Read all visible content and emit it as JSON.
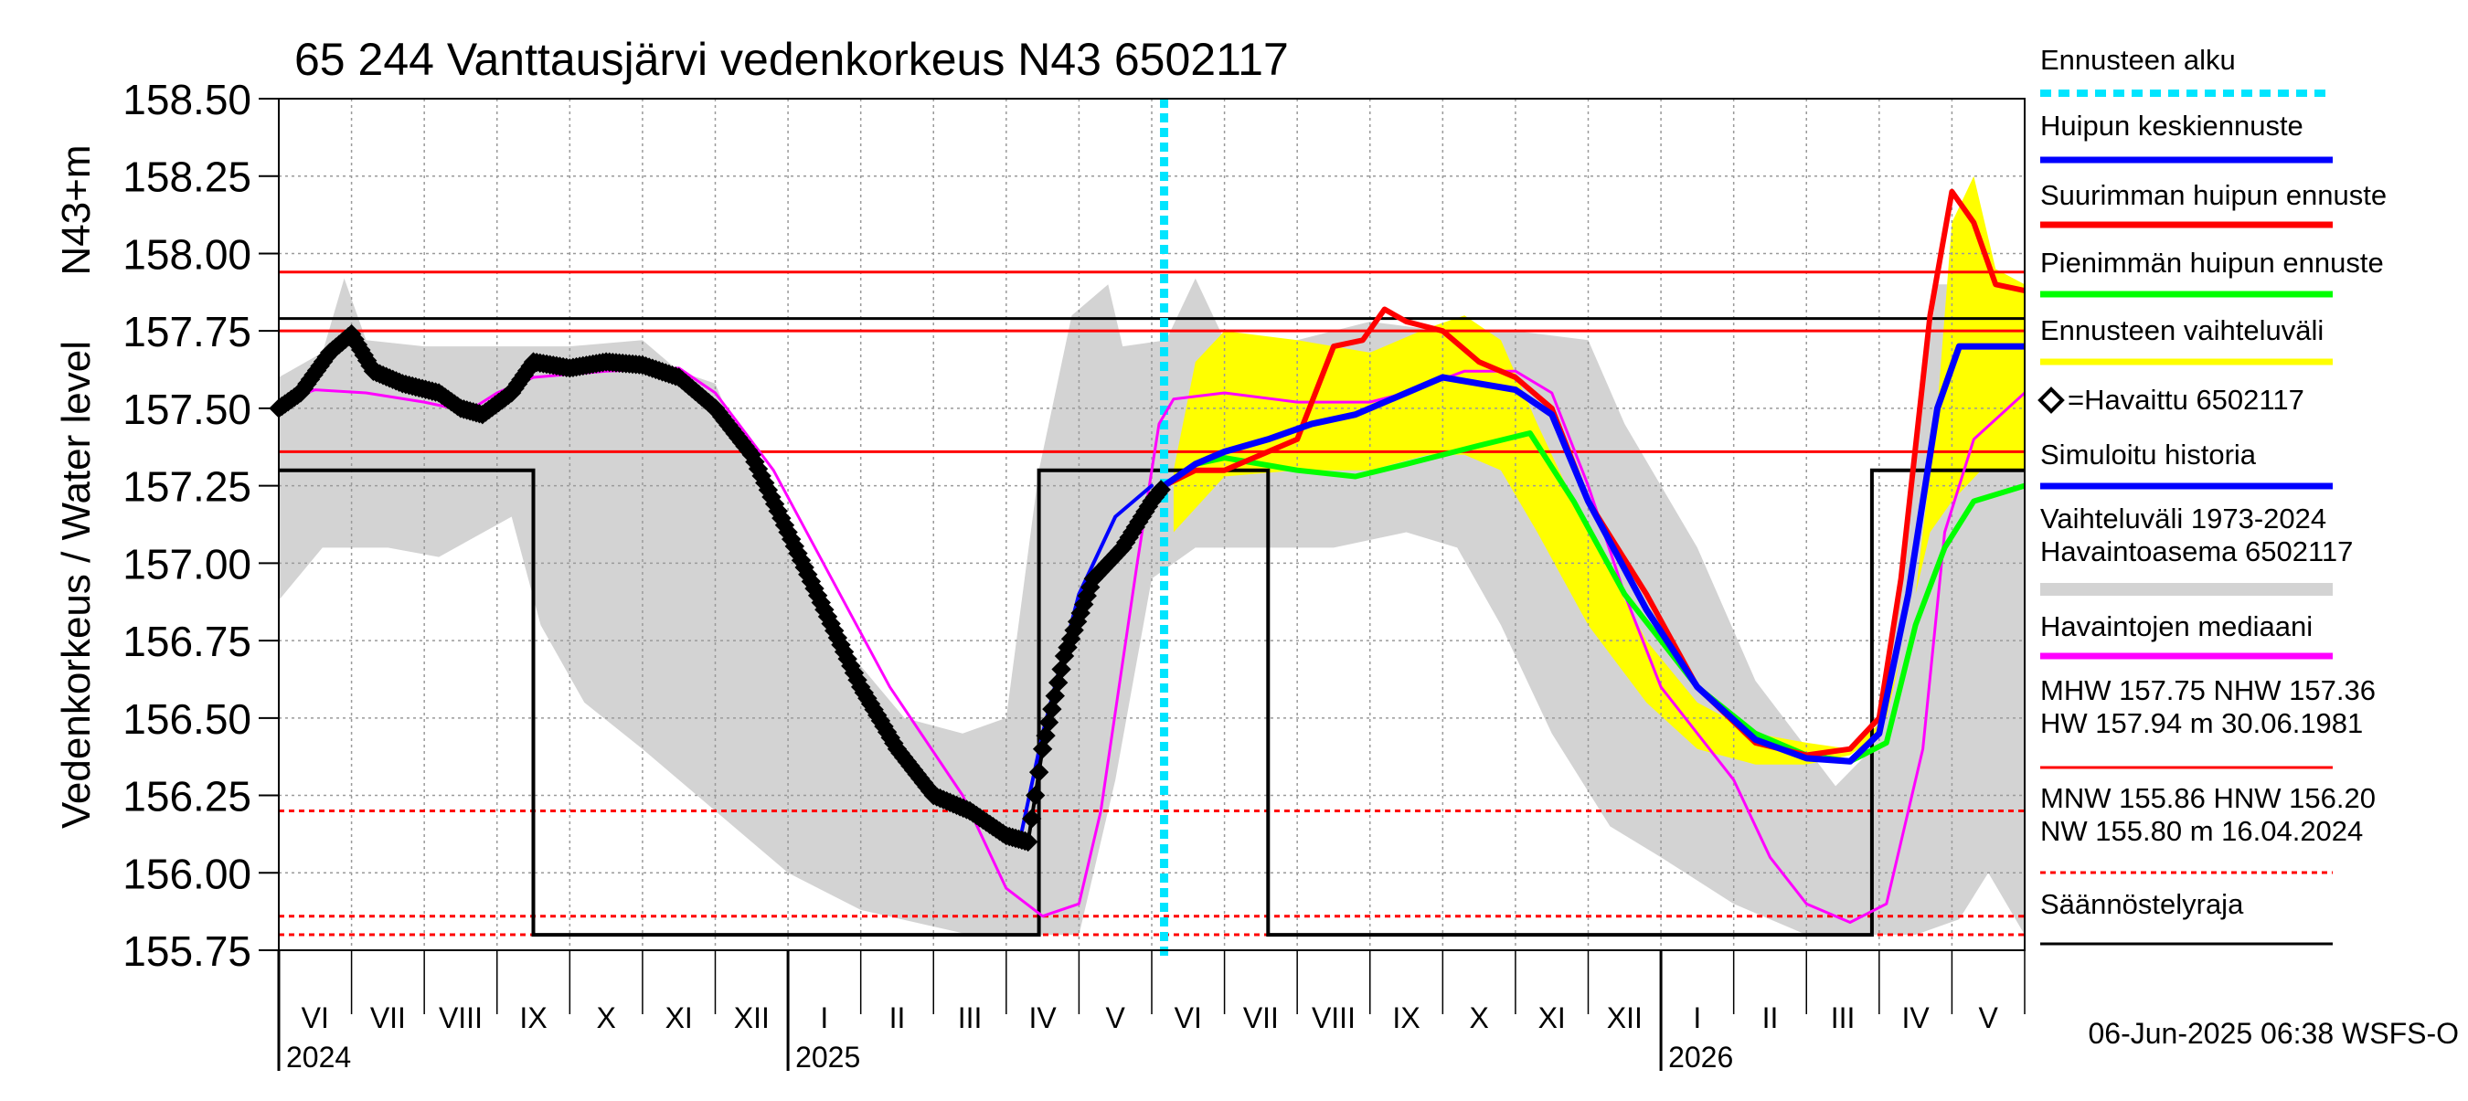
{
  "chart_data": {
    "type": "line",
    "title": "65 244 Vanttausjärvi vedenkorkeus N43 6502117",
    "ylabel_left": "Vedenkorkeus / Water level",
    "ylabel_unit": "N43+m",
    "ylim": [
      155.75,
      158.5
    ],
    "yticks": [
      "158.50",
      "158.25",
      "158.00",
      "157.75",
      "157.50",
      "157.25",
      "157.00",
      "156.75",
      "156.50",
      "156.25",
      "156.00",
      "155.75"
    ],
    "xlim_month_index": [
      0,
      24
    ],
    "months": [
      "VI",
      "VII",
      "VIII",
      "IX",
      "X",
      "XI",
      "XII",
      "I",
      "II",
      "III",
      "IV",
      "V",
      "VI",
      "VII",
      "VIII",
      "IX",
      "X",
      "XI",
      "XII",
      "I",
      "II",
      "III",
      "IV",
      "V"
    ],
    "years": [
      {
        "label": "2024",
        "month_index": 0
      },
      {
        "label": "2025",
        "month_index": 7
      },
      {
        "label": "2026",
        "month_index": 19
      }
    ],
    "forecast_start_month_index": 12.17,
    "reference_lines": [
      {
        "name": "HW",
        "value": 157.94,
        "color": "#ff0000",
        "style": "solid"
      },
      {
        "name": "MHW",
        "value": 157.75,
        "color": "#ff0000",
        "style": "solid"
      },
      {
        "name": "NHW",
        "value": 157.36,
        "color": "#ff0000",
        "style": "solid"
      },
      {
        "name": "HNW",
        "value": 156.2,
        "color": "#ff0000",
        "style": "dashed"
      },
      {
        "name": "MNW",
        "value": 155.86,
        "color": "#ff0000",
        "style": "dashed"
      },
      {
        "name": "NW",
        "value": 155.8,
        "color": "#ff0000",
        "style": "dashed"
      },
      {
        "name": "upper_black",
        "value": 157.79,
        "color": "#000000",
        "style": "solid"
      }
    ],
    "regulation_limit": {
      "color": "#000000",
      "points": [
        [
          0,
          157.3
        ],
        [
          3.5,
          157.3
        ],
        [
          3.5,
          155.8
        ],
        [
          10.45,
          155.8
        ],
        [
          10.45,
          157.3
        ],
        [
          13.6,
          157.3
        ],
        [
          13.6,
          155.8
        ],
        [
          21.9,
          155.8
        ],
        [
          21.9,
          157.3
        ],
        [
          24,
          157.3
        ]
      ]
    },
    "historical_range": {
      "color": "#d3d3d3",
      "upper": [
        [
          0,
          157.6
        ],
        [
          0.6,
          157.68
        ],
        [
          0.9,
          157.92
        ],
        [
          1.2,
          157.72
        ],
        [
          2,
          157.7
        ],
        [
          3,
          157.7
        ],
        [
          4,
          157.7
        ],
        [
          5,
          157.72
        ],
        [
          5.5,
          157.62
        ],
        [
          6,
          157.58
        ],
        [
          6.5,
          157.3
        ],
        [
          7,
          157.05
        ],
        [
          7.6,
          156.78
        ],
        [
          8.6,
          156.5
        ],
        [
          9.4,
          156.45
        ],
        [
          10,
          156.5
        ],
        [
          10.45,
          157.3
        ],
        [
          10.9,
          157.8
        ],
        [
          11.4,
          157.9
        ],
        [
          11.6,
          157.7
        ],
        [
          12.2,
          157.72
        ],
        [
          12.6,
          157.92
        ],
        [
          13,
          157.72
        ],
        [
          14,
          157.72
        ],
        [
          15,
          157.78
        ],
        [
          16,
          157.75
        ],
        [
          17,
          157.75
        ],
        [
          18,
          157.72
        ],
        [
          18.5,
          157.45
        ],
        [
          19.5,
          157.05
        ],
        [
          20.3,
          156.62
        ],
        [
          21.4,
          156.28
        ],
        [
          21.9,
          156.4
        ],
        [
          22.3,
          157.0
        ],
        [
          22.8,
          157.9
        ],
        [
          23.2,
          157.9
        ],
        [
          24,
          157.8
        ]
      ],
      "lower": [
        [
          0,
          156.88
        ],
        [
          0.6,
          157.05
        ],
        [
          1.5,
          157.05
        ],
        [
          2.2,
          157.02
        ],
        [
          3.2,
          157.15
        ],
        [
          3.6,
          156.8
        ],
        [
          4.2,
          156.55
        ],
        [
          5,
          156.4
        ],
        [
          6,
          156.2
        ],
        [
          7,
          156.0
        ],
        [
          8,
          155.88
        ],
        [
          9.5,
          155.8
        ],
        [
          10.45,
          155.8
        ],
        [
          11,
          155.8
        ],
        [
          11.5,
          156.3
        ],
        [
          12,
          156.95
        ],
        [
          12.6,
          157.05
        ],
        [
          13.5,
          157.05
        ],
        [
          14.5,
          157.05
        ],
        [
          15.5,
          157.1
        ],
        [
          16.2,
          157.05
        ],
        [
          16.8,
          156.8
        ],
        [
          17.5,
          156.45
        ],
        [
          18.3,
          156.15
        ],
        [
          19,
          156.05
        ],
        [
          20,
          155.9
        ],
        [
          21,
          155.8
        ],
        [
          22.5,
          155.8
        ],
        [
          23.1,
          155.85
        ],
        [
          23.5,
          156.0
        ],
        [
          24,
          155.8
        ]
      ]
    },
    "forecast_range": {
      "color": "#ffff00",
      "upper": [
        [
          12.3,
          157.3
        ],
        [
          12.6,
          157.65
        ],
        [
          13,
          157.75
        ],
        [
          14,
          157.72
        ],
        [
          15,
          157.68
        ],
        [
          15.8,
          157.76
        ],
        [
          16.3,
          157.8
        ],
        [
          16.8,
          157.72
        ],
        [
          17.3,
          157.45
        ],
        [
          18,
          157.1
        ],
        [
          18.8,
          156.75
        ],
        [
          19.5,
          156.55
        ],
        [
          20.3,
          156.45
        ],
        [
          21,
          156.42
        ],
        [
          21.6,
          156.4
        ],
        [
          22.1,
          156.5
        ],
        [
          22.5,
          156.9
        ],
        [
          22.8,
          157.5
        ],
        [
          23.0,
          158.1
        ],
        [
          23.3,
          158.25
        ],
        [
          23.6,
          157.95
        ],
        [
          24,
          157.9
        ]
      ],
      "lower": [
        [
          12.3,
          157.1
        ],
        [
          13,
          157.28
        ],
        [
          14,
          157.3
        ],
        [
          15,
          157.3
        ],
        [
          15.8,
          157.35
        ],
        [
          16.3,
          157.35
        ],
        [
          16.8,
          157.3
        ],
        [
          17.3,
          157.1
        ],
        [
          18,
          156.8
        ],
        [
          18.8,
          156.55
        ],
        [
          19.5,
          156.4
        ],
        [
          20.3,
          156.35
        ],
        [
          21,
          156.35
        ],
        [
          21.6,
          156.38
        ],
        [
          22.0,
          156.45
        ],
        [
          22.3,
          156.7
        ],
        [
          22.7,
          157.1
        ],
        [
          23.0,
          157.2
        ],
        [
          23.4,
          157.3
        ],
        [
          24,
          157.3
        ]
      ]
    },
    "series": [
      {
        "name": "Havaintojen mediaani",
        "color": "#ff00ff",
        "width": 3,
        "points": [
          [
            0,
            157.52
          ],
          [
            0.5,
            157.56
          ],
          [
            1.2,
            157.55
          ],
          [
            2,
            157.52
          ],
          [
            2.6,
            157.49
          ],
          [
            3,
            157.55
          ],
          [
            3.5,
            157.6
          ],
          [
            4.5,
            157.62
          ],
          [
            5.5,
            157.63
          ],
          [
            6,
            157.55
          ],
          [
            6.8,
            157.3
          ],
          [
            7.6,
            156.95
          ],
          [
            8.4,
            156.6
          ],
          [
            9.4,
            156.25
          ],
          [
            10,
            155.95
          ],
          [
            10.5,
            155.86
          ],
          [
            11,
            155.9
          ],
          [
            11.3,
            156.2
          ],
          [
            11.8,
            157.0
          ],
          [
            12.1,
            157.45
          ],
          [
            12.3,
            157.53
          ],
          [
            13,
            157.55
          ],
          [
            14,
            157.52
          ],
          [
            15,
            157.52
          ],
          [
            15.5,
            157.55
          ],
          [
            16.3,
            157.62
          ],
          [
            17,
            157.62
          ],
          [
            17.5,
            157.55
          ],
          [
            18,
            157.25
          ],
          [
            18.5,
            156.9
          ],
          [
            19,
            156.6
          ],
          [
            20,
            156.3
          ],
          [
            20.5,
            156.05
          ],
          [
            21,
            155.9
          ],
          [
            21.6,
            155.84
          ],
          [
            22.1,
            155.9
          ],
          [
            22.6,
            156.4
          ],
          [
            22.9,
            157.1
          ],
          [
            23.3,
            157.4
          ],
          [
            24,
            157.55
          ]
        ]
      },
      {
        "name": "Simuloitu historia",
        "color": "#0000ff",
        "width": 4,
        "points": [
          [
            9.8,
            156.15
          ],
          [
            10.2,
            156.12
          ],
          [
            10.5,
            156.45
          ],
          [
            11,
            156.9
          ],
          [
            11.5,
            157.15
          ],
          [
            12.0,
            157.25
          ]
        ]
      },
      {
        "name": "Pienimmän huipun ennuste",
        "color": "#00ff00",
        "width": 6,
        "points": [
          [
            12.17,
            157.25
          ],
          [
            12.6,
            157.32
          ],
          [
            13,
            157.34
          ],
          [
            14,
            157.3
          ],
          [
            14.8,
            157.28
          ],
          [
            15.5,
            157.32
          ],
          [
            16.5,
            157.38
          ],
          [
            17.2,
            157.42
          ],
          [
            17.8,
            157.2
          ],
          [
            18.5,
            156.9
          ],
          [
            19.5,
            156.6
          ],
          [
            20.3,
            156.45
          ],
          [
            21,
            156.38
          ],
          [
            21.6,
            156.36
          ],
          [
            22.1,
            156.42
          ],
          [
            22.5,
            156.8
          ],
          [
            22.9,
            157.05
          ],
          [
            23.3,
            157.2
          ],
          [
            24,
            157.25
          ]
        ]
      },
      {
        "name": "Suurimman huipun ennuste",
        "color": "#ff0000",
        "width": 6,
        "points": [
          [
            12.17,
            157.25
          ],
          [
            12.6,
            157.3
          ],
          [
            13,
            157.3
          ],
          [
            13.5,
            157.35
          ],
          [
            14,
            157.4
          ],
          [
            14.5,
            157.7
          ],
          [
            14.9,
            157.72
          ],
          [
            15.2,
            157.82
          ],
          [
            15.5,
            157.78
          ],
          [
            16,
            157.75
          ],
          [
            16.5,
            157.65
          ],
          [
            17,
            157.6
          ],
          [
            17.5,
            157.5
          ],
          [
            18,
            157.2
          ],
          [
            18.8,
            156.9
          ],
          [
            19.5,
            156.6
          ],
          [
            20.3,
            156.42
          ],
          [
            21,
            156.38
          ],
          [
            21.6,
            156.4
          ],
          [
            22.0,
            156.5
          ],
          [
            22.3,
            156.95
          ],
          [
            22.7,
            157.8
          ],
          [
            23.0,
            158.2
          ],
          [
            23.3,
            158.1
          ],
          [
            23.6,
            157.9
          ],
          [
            24,
            157.88
          ]
        ]
      },
      {
        "name": "Huipun keskiennuste",
        "color": "#0000ff",
        "width": 7,
        "points": [
          [
            12.17,
            157.25
          ],
          [
            12.6,
            157.32
          ],
          [
            13,
            157.36
          ],
          [
            13.6,
            157.4
          ],
          [
            14.2,
            157.45
          ],
          [
            14.8,
            157.48
          ],
          [
            15.5,
            157.55
          ],
          [
            16.0,
            157.6
          ],
          [
            16.5,
            157.58
          ],
          [
            17,
            157.56
          ],
          [
            17.5,
            157.48
          ],
          [
            18,
            157.2
          ],
          [
            18.8,
            156.85
          ],
          [
            19.5,
            156.6
          ],
          [
            20.3,
            156.43
          ],
          [
            21,
            156.37
          ],
          [
            21.6,
            156.36
          ],
          [
            22.0,
            156.45
          ],
          [
            22.4,
            156.9
          ],
          [
            22.8,
            157.5
          ],
          [
            23.1,
            157.7
          ],
          [
            23.5,
            157.7
          ],
          [
            24,
            157.7
          ]
        ]
      },
      {
        "name": "Havaittu 6502117",
        "color": "#000000",
        "width": 4,
        "markers": "diamond",
        "points": [
          [
            0,
            157.5
          ],
          [
            0.3,
            157.55
          ],
          [
            0.7,
            157.68
          ],
          [
            1.0,
            157.74
          ],
          [
            1.3,
            157.62
          ],
          [
            1.7,
            157.58
          ],
          [
            2.2,
            157.55
          ],
          [
            2.5,
            157.5
          ],
          [
            2.8,
            157.48
          ],
          [
            3.2,
            157.55
          ],
          [
            3.5,
            157.65
          ],
          [
            4.0,
            157.63
          ],
          [
            4.5,
            157.65
          ],
          [
            5.0,
            157.64
          ],
          [
            5.5,
            157.6
          ],
          [
            6.0,
            157.5
          ],
          [
            6.5,
            157.35
          ],
          [
            7.0,
            157.1
          ],
          [
            7.5,
            156.85
          ],
          [
            8.0,
            156.6
          ],
          [
            8.5,
            156.4
          ],
          [
            9.0,
            156.25
          ],
          [
            9.5,
            156.2
          ],
          [
            10.0,
            156.12
          ],
          [
            10.3,
            156.1
          ],
          [
            10.5,
            156.4
          ],
          [
            10.8,
            156.7
          ],
          [
            11.2,
            156.95
          ],
          [
            11.6,
            157.05
          ],
          [
            12.0,
            157.2
          ],
          [
            12.17,
            157.25
          ]
        ]
      }
    ],
    "legend": [
      {
        "label": "Ennusteen alku",
        "color": "#00e5ff",
        "style": "dotted"
      },
      {
        "label": "Huipun keskiennuste",
        "color": "#0000ff",
        "style": "solid"
      },
      {
        "label": "Suurimman huipun ennuste",
        "color": "#ff0000",
        "style": "solid"
      },
      {
        "label": "Pienimmän huipun ennuste",
        "color": "#00ff00",
        "style": "solid"
      },
      {
        "label": "Ennusteen vaihteluväli",
        "color": "#ffff00",
        "style": "solid"
      },
      {
        "label": "=Havaittu 6502117",
        "color": "#000000",
        "style": "marker"
      },
      {
        "label": "Simuloitu historia",
        "color": "#0000ff",
        "style": "solid"
      },
      {
        "label": "Vaihteluväli 1973-2024",
        "label2": " Havaintoasema 6502117",
        "color": "#d3d3d3",
        "style": "solid"
      },
      {
        "label": "Havaintojen mediaani",
        "color": "#ff00ff",
        "style": "solid"
      },
      {
        "label": "MHW 157.75 NHW 157.36",
        "label2": "HW 157.94 m 30.06.1981",
        "color": "#ff0000",
        "style": "solid"
      },
      {
        "label": "MNW 155.86 HNW 156.20",
        "label2": "NW 155.80 m 16.04.2024",
        "color": "#ff0000",
        "style": "dashed"
      },
      {
        "label": "Säännöstelyraja",
        "color": "#000000",
        "style": "solid"
      }
    ],
    "footer": "06-Jun-2025 06:38 WSFS-O"
  }
}
